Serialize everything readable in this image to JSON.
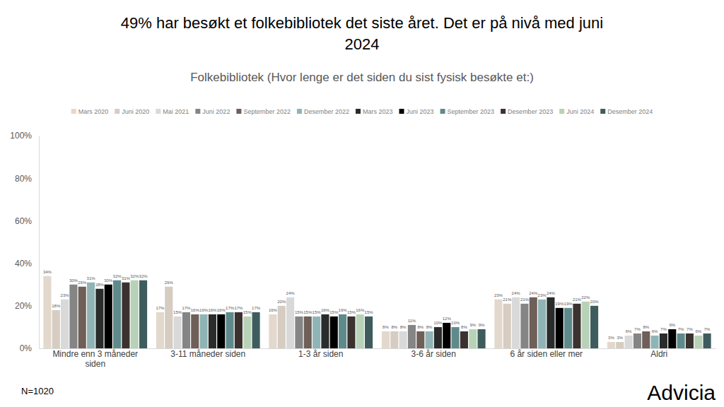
{
  "chart_data": {
    "type": "bar",
    "title": "49% har besøkt et folkebibliotek det siste året. Det er på nivå med juni 2024",
    "subtitle": "Folkebibliotek (Hvor lenge er det siden du sist fysisk besøkte et:)",
    "annotations": [
      "N=1020",
      "Advicia"
    ],
    "categories": [
      "Mindre enn 3 måneder siden",
      "3-11 måneder siden",
      "1-3 år siden",
      "3-6 år siden",
      "6 år siden eller mer",
      "Aldri"
    ],
    "series": [
      {
        "name": "Mars 2020",
        "color": "#e3d8cc",
        "values": [
          34,
          17,
          16,
          8,
          23,
          3
        ],
        "value_labels": [
          "34%",
          "17%",
          "16%",
          "8%",
          "23%",
          "3%"
        ]
      },
      {
        "name": "Juni 2020",
        "color": "#d6ccc1",
        "values": [
          18,
          29,
          20,
          8,
          21,
          3
        ],
        "value_labels": [
          "18%",
          "29%",
          "20%",
          "8%",
          "21%",
          "3%"
        ]
      },
      {
        "name": "Mai 2021",
        "color": "#d9d9d9",
        "values": [
          23,
          15,
          24,
          8,
          24,
          6
        ],
        "value_labels": [
          "23%",
          "15%",
          "24%",
          "8%",
          "24%",
          "6%"
        ]
      },
      {
        "name": "Juni 2022",
        "color": "#858585",
        "values": [
          30,
          17,
          15,
          11,
          21,
          7
        ],
        "value_labels": [
          "30%",
          "17%",
          "15%",
          "11%",
          "21%",
          "7%"
        ]
      },
      {
        "name": "September 2022",
        "color": "#6e5f58",
        "values": [
          29,
          16,
          15,
          8,
          24,
          8
        ],
        "value_labels": [
          "29%",
          "16%",
          "15%",
          "8%",
          "24%",
          "8%"
        ]
      },
      {
        "name": "Desember 2022",
        "color": "#8fb4b6",
        "values": [
          31,
          16,
          15,
          8,
          23,
          6
        ],
        "value_labels": [
          "31%",
          "16%",
          "15%",
          "8%",
          "23%",
          "6%"
        ]
      },
      {
        "name": "Mars 2023",
        "color": "#2a2c2c",
        "values": [
          28,
          16,
          16,
          10,
          24,
          7
        ],
        "value_labels": [
          "28%",
          "16%",
          "16%",
          "10%",
          "24%",
          "7%"
        ]
      },
      {
        "name": "Juni 2023",
        "color": "#000000",
        "values": [
          30,
          16,
          15,
          12,
          19,
          9
        ],
        "value_labels": [
          "30%",
          "16%",
          "15%",
          "12%",
          "19%",
          "9%"
        ]
      },
      {
        "name": "September 2023",
        "color": "#5f8a8b",
        "values": [
          32,
          17,
          16,
          10,
          19,
          7
        ],
        "value_labels": [
          "32%",
          "17%",
          "16%",
          "10%",
          "19%",
          "7%"
        ]
      },
      {
        "name": "Desember 2023",
        "color": "#3b3230",
        "values": [
          31,
          17,
          15,
          8,
          21,
          7
        ],
        "value_labels": [
          "31%",
          "17%",
          "15%",
          "8%",
          "21%",
          "7%"
        ]
      },
      {
        "name": "Juni 2024",
        "color": "#b8d2b8",
        "values": [
          32,
          15,
          16,
          9,
          22,
          6
        ],
        "value_labels": [
          "32%",
          "15%",
          "16%",
          "9%",
          "22%",
          "6%"
        ]
      },
      {
        "name": "Desember 2024",
        "color": "#3e5c5e",
        "values": [
          32,
          17,
          15,
          9,
          20,
          7
        ],
        "value_labels": [
          "32%",
          "17%",
          "15%",
          "9%",
          "20%",
          "7%"
        ]
      }
    ],
    "ylim": [
      0,
      100
    ],
    "yticks": [
      {
        "value": 0,
        "label": "0%"
      },
      {
        "value": 20,
        "label": "20%"
      },
      {
        "value": 40,
        "label": "40%"
      },
      {
        "value": 60,
        "label": "60%"
      },
      {
        "value": 80,
        "label": "80%"
      },
      {
        "value": 100,
        "label": "100%"
      }
    ],
    "grid": false,
    "legend": "top",
    "data_labels": true
  }
}
